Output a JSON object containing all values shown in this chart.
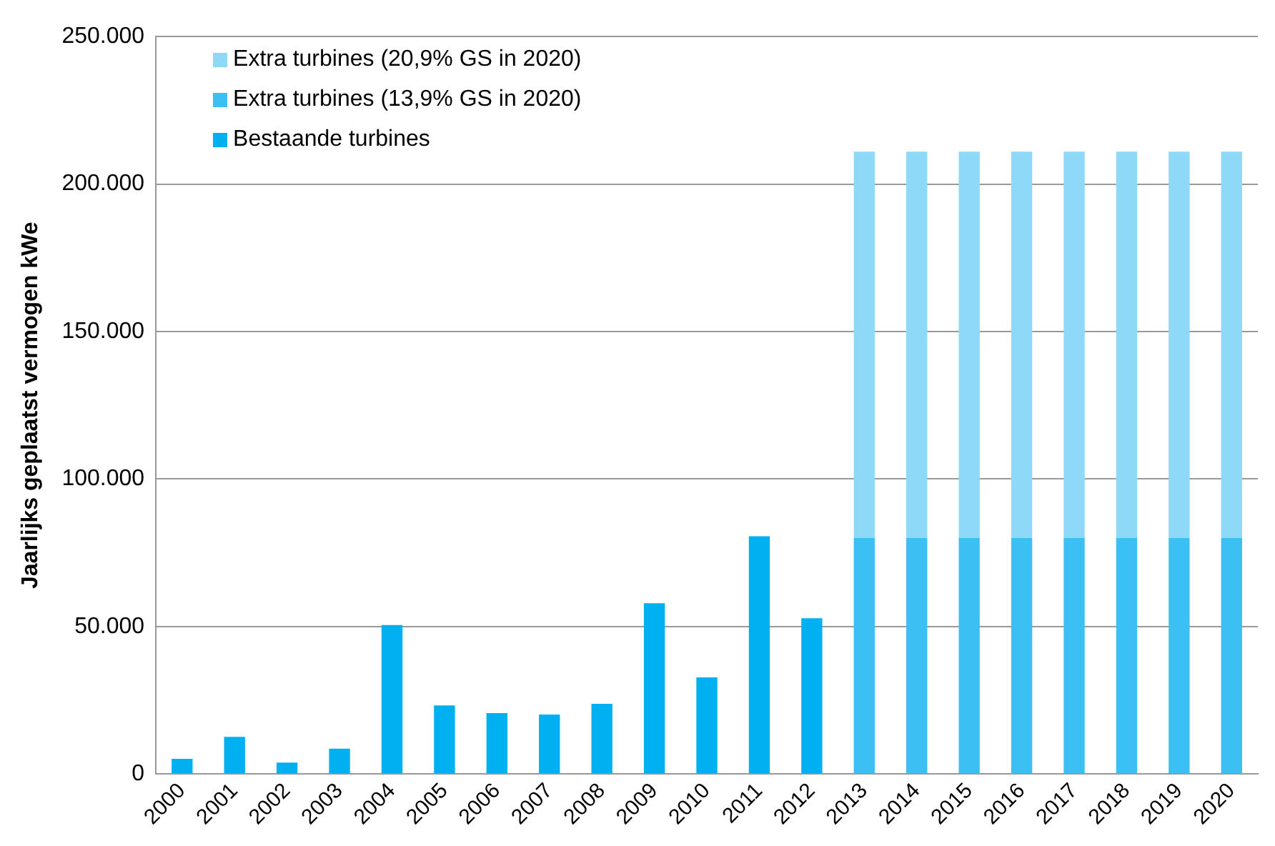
{
  "chart_data": {
    "type": "bar",
    "stacked": true,
    "ylabel": "Jaarlijks geplaatst vermogen kWe",
    "categories": [
      "2000",
      "2001",
      "2002",
      "2003",
      "2004",
      "2005",
      "2006",
      "2007",
      "2008",
      "2009",
      "2010",
      "2011",
      "2012",
      "2013",
      "2014",
      "2015",
      "2016",
      "2017",
      "2018",
      "2019",
      "2020"
    ],
    "series": [
      {
        "name": "Bestaande turbines",
        "color": "#00b0f0",
        "values": [
          5200,
          12600,
          3900,
          8600,
          50500,
          23300,
          20700,
          20200,
          23800,
          57900,
          32800,
          80600,
          52800,
          null,
          null,
          null,
          null,
          null,
          null,
          null,
          null
        ]
      },
      {
        "name": "Extra turbines (13,9% GS in 2020)",
        "color": "#3cbff2",
        "values": [
          null,
          null,
          null,
          null,
          null,
          null,
          null,
          null,
          null,
          null,
          null,
          null,
          null,
          80000,
          80000,
          80000,
          80000,
          80000,
          80000,
          80000,
          80000
        ]
      },
      {
        "name": "Extra turbines (20,9% GS in 2020)",
        "color": "#8fd9f8",
        "values": [
          null,
          null,
          null,
          null,
          null,
          null,
          null,
          null,
          null,
          null,
          null,
          null,
          null,
          131000,
          131000,
          131000,
          131000,
          131000,
          131000,
          131000,
          131000
        ]
      }
    ],
    "ylim": [
      0,
      250000
    ],
    "yticks": [
      0,
      {
        "value": 50000,
        "label": "50.000"
      },
      {
        "value": 100000,
        "label": "100.000"
      },
      {
        "value": 150000,
        "label": "150.000"
      },
      {
        "value": 200000,
        "label": "200.000"
      },
      {
        "value": 250000,
        "label": "250.000"
      }
    ],
    "grid": "y",
    "legend": "top left"
  }
}
